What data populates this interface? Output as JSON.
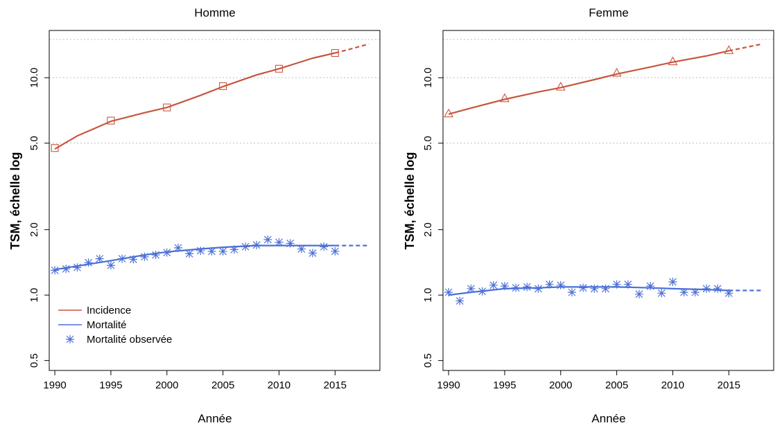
{
  "chart_data": [
    {
      "type": "line",
      "title": "Homme",
      "xlabel": "Année",
      "ylabel": "TSM, échelle log",
      "scale_y": "log",
      "xlim": [
        1989.5,
        2019
      ],
      "ylim": [
        0.45,
        16.5
      ],
      "x_ticks": [
        "1990",
        "1995",
        "2000",
        "2005",
        "2010",
        "2015"
      ],
      "y_ticks": [
        "0.5",
        "1.0",
        "2.0",
        "5.0",
        "10.0"
      ],
      "gridlines_y": [
        5.0,
        10.0,
        15.0
      ],
      "legend": {
        "placement": "bottom-left",
        "items": [
          "Incidence",
          "Mortalité",
          "Mortalité observée"
        ]
      },
      "series": [
        {
          "name": "Incidence",
          "color": "#c8553d",
          "marker": "square",
          "x": [
            1990,
            1992,
            1995,
            1998,
            2000,
            2003,
            2005,
            2008,
            2010,
            2013,
            2015
          ],
          "values": [
            4.7,
            5.4,
            6.3,
            6.9,
            7.3,
            8.3,
            9.1,
            10.3,
            11.0,
            12.3,
            13.0
          ],
          "marker_x": [
            1990,
            1995,
            2000,
            2005,
            2010,
            2015
          ],
          "marker_values": [
            4.75,
            6.35,
            7.3,
            9.15,
            11.0,
            13.0
          ],
          "projection_x": [
            2015,
            2016.5,
            2018
          ],
          "projection_values": [
            13.0,
            13.6,
            14.3
          ]
        },
        {
          "name": "Mortalité",
          "color": "#4a6fd6",
          "x": [
            1990,
            1992,
            1995,
            1998,
            2000,
            2003,
            2005,
            2008,
            2010,
            2013,
            2015
          ],
          "values": [
            1.31,
            1.36,
            1.44,
            1.53,
            1.58,
            1.63,
            1.66,
            1.69,
            1.69,
            1.69,
            1.69
          ],
          "projection_x": [
            2015,
            2018
          ],
          "projection_values": [
            1.69,
            1.69
          ]
        },
        {
          "name": "Mortalité observée",
          "color": "#4a6fd6",
          "marker": "asterisk",
          "x": [
            1990,
            1991,
            1992,
            1993,
            1994,
            1995,
            1996,
            1997,
            1998,
            1999,
            2000,
            2001,
            2002,
            2003,
            2004,
            2005,
            2006,
            2007,
            2008,
            2009,
            2010,
            2011,
            2012,
            2013,
            2014,
            2015
          ],
          "values": [
            1.3,
            1.32,
            1.34,
            1.41,
            1.47,
            1.37,
            1.47,
            1.46,
            1.5,
            1.53,
            1.57,
            1.65,
            1.55,
            1.6,
            1.59,
            1.59,
            1.62,
            1.67,
            1.7,
            1.8,
            1.75,
            1.73,
            1.63,
            1.56,
            1.67,
            1.59
          ]
        }
      ]
    },
    {
      "type": "line",
      "title": "Femme",
      "xlabel": "Année",
      "ylabel": "TSM, échelle log",
      "scale_y": "log",
      "xlim": [
        1989.5,
        2019
      ],
      "ylim": [
        0.45,
        16.5
      ],
      "x_ticks": [
        "1990",
        "1995",
        "2000",
        "2005",
        "2010",
        "2015"
      ],
      "y_ticks": [
        "0.5",
        "1.0",
        "2.0",
        "5.0",
        "10.0"
      ],
      "gridlines_y": [
        5.0,
        10.0,
        15.0
      ],
      "series": [
        {
          "name": "Incidence",
          "color": "#c8553d",
          "marker": "triangle",
          "x": [
            1990,
            1992,
            1995,
            1998,
            2000,
            2003,
            2005,
            2008,
            2010,
            2013,
            2015
          ],
          "values": [
            6.8,
            7.25,
            7.95,
            8.6,
            9.0,
            9.8,
            10.4,
            11.2,
            11.8,
            12.6,
            13.3
          ],
          "marker_x": [
            1990,
            1995,
            2000,
            2005,
            2010,
            2015
          ],
          "marker_values": [
            6.85,
            8.05,
            9.1,
            10.55,
            11.9,
            13.4
          ],
          "projection_x": [
            2015,
            2016.5,
            2018
          ],
          "projection_values": [
            13.3,
            13.8,
            14.3
          ]
        },
        {
          "name": "Mortalité",
          "color": "#4a6fd6",
          "x": [
            1990,
            1992,
            1995,
            1998,
            2000,
            2003,
            2005,
            2008,
            2010,
            2013,
            2015
          ],
          "values": [
            1.0,
            1.03,
            1.07,
            1.08,
            1.09,
            1.09,
            1.09,
            1.08,
            1.07,
            1.06,
            1.05
          ],
          "projection_x": [
            2015,
            2018
          ],
          "projection_values": [
            1.05,
            1.05
          ]
        },
        {
          "name": "Mortalité observée",
          "color": "#4a6fd6",
          "marker": "asterisk",
          "x": [
            1990,
            1991,
            1992,
            1993,
            1994,
            1995,
            1996,
            1997,
            1998,
            1999,
            2000,
            2001,
            2002,
            2003,
            2004,
            2005,
            2006,
            2007,
            2008,
            2009,
            2010,
            2011,
            2012,
            2013,
            2014,
            2015
          ],
          "values": [
            1.03,
            0.94,
            1.07,
            1.04,
            1.11,
            1.1,
            1.08,
            1.09,
            1.07,
            1.12,
            1.11,
            1.03,
            1.08,
            1.07,
            1.07,
            1.12,
            1.12,
            1.01,
            1.1,
            1.02,
            1.15,
            1.03,
            1.03,
            1.07,
            1.07,
            1.02
          ]
        }
      ]
    }
  ]
}
